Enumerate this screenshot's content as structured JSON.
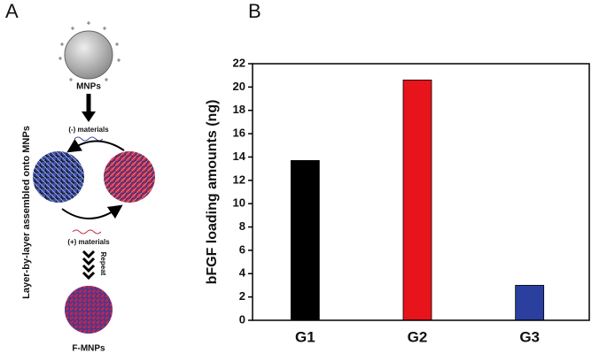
{
  "panel_a": {
    "label": "A",
    "side_label": "Layer-by-layer assembled onto MNPs",
    "core": "MNPs",
    "negative": "(-) materials",
    "positive": "(+) materials",
    "repeat": "Repeat",
    "product": "F-MNPs"
  },
  "chart_data": {
    "type": "bar",
    "panel_label": "B",
    "y_label": "bFGF loading amounts (ng)",
    "categories": [
      "G1",
      "G2",
      "G3"
    ],
    "values": [
      13.7,
      20.6,
      3.0
    ],
    "colors": [
      "#000000",
      "#e8141b",
      "#2a3f9e"
    ],
    "ylim": [
      0,
      22
    ],
    "yticks": [
      0,
      2,
      4,
      6,
      8,
      10,
      12,
      14,
      16,
      18,
      20,
      22
    ],
    "grid": false
  }
}
